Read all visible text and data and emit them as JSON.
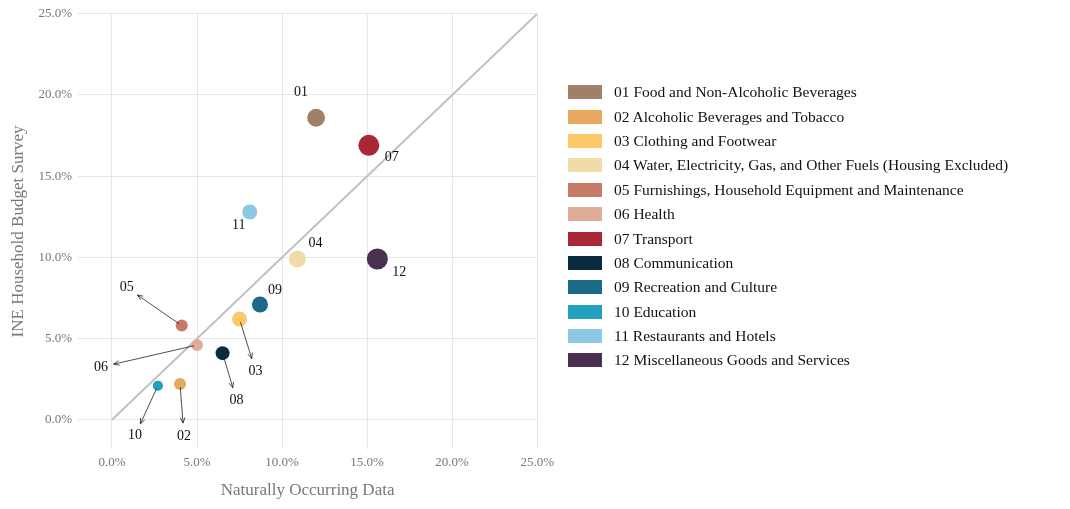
{
  "chart_data": {
    "type": "bubble",
    "xlabel": "Naturally Occurring Data",
    "ylabel": "INE Household Budget Survey",
    "xlim": [
      -2,
      25
    ],
    "ylim": [
      -1.8,
      25
    ],
    "xticks": [
      {
        "value": 0,
        "label": "0.0%"
      },
      {
        "value": 5,
        "label": "5.0%"
      },
      {
        "value": 10,
        "label": "10.0%"
      },
      {
        "value": 15,
        "label": "15.0%"
      },
      {
        "value": 20,
        "label": "20.0%"
      },
      {
        "value": 25,
        "label": "25.0%"
      }
    ],
    "yticks": [
      {
        "value": 0,
        "label": "0.0%"
      },
      {
        "value": 5,
        "label": "5.0%"
      },
      {
        "value": 10,
        "label": "10.0%"
      },
      {
        "value": 15,
        "label": "15.0%"
      },
      {
        "value": 20,
        "label": "20.0%"
      },
      {
        "value": 25,
        "label": "25.0%"
      }
    ],
    "grid": true,
    "legend": "right",
    "series": [
      {
        "type": "line",
        "color": "#c0c0c0",
        "x": [
          0,
          25
        ],
        "values": [
          0,
          25
        ]
      },
      {
        "name": "01 Food and Non-Alcoholic Beverages",
        "color": "#a08068",
        "x": [
          12.0
        ],
        "values": [
          18.6
        ],
        "sizes": [
          0.73
        ]
      },
      {
        "name": "02 Alcoholic Beverages and Tobacco",
        "color": "#e8a860",
        "x": [
          4.0
        ],
        "values": [
          2.2
        ],
        "sizes": [
          0.33
        ]
      },
      {
        "name": "03 Clothing and Footwear",
        "color": "#fcc86a",
        "x": [
          7.5
        ],
        "values": [
          6.2
        ],
        "sizes": [
          0.51
        ]
      },
      {
        "name": "04 Water, Electricity, Gas, and Other Fuels (Housing Excluded)",
        "color": "#f0dca8",
        "x": [
          10.9
        ],
        "values": [
          9.9
        ],
        "sizes": [
          0.66
        ]
      },
      {
        "name": "05 Furnishings, Household Equipment and Maintenance",
        "color": "#c87a68",
        "x": [
          4.1
        ],
        "values": [
          5.8
        ],
        "sizes": [
          0.33
        ]
      },
      {
        "name": "06 Health",
        "color": "#dcae98",
        "x": [
          5.0
        ],
        "values": [
          4.6
        ],
        "sizes": [
          0.33
        ]
      },
      {
        "name": "07 Transport",
        "color": "#a82838",
        "x": [
          15.1
        ],
        "values": [
          16.9
        ],
        "sizes": [
          1
        ]
      },
      {
        "name": "08 Communication",
        "color": "#0a2a40",
        "x": [
          6.5
        ],
        "values": [
          4.1
        ],
        "sizes": [
          0.44
        ]
      },
      {
        "name": "09 Recreation and Culture",
        "color": "#1a6a88",
        "x": [
          8.7
        ],
        "values": [
          7.1
        ],
        "sizes": [
          0.58
        ]
      },
      {
        "name": "10 Education",
        "color": "#22a0c0",
        "x": [
          2.7
        ],
        "values": [
          2.1
        ],
        "sizes": [
          0.23
        ]
      },
      {
        "name": "11 Restaurants and Hotels",
        "color": "#8cc8e4",
        "x": [
          8.1
        ],
        "values": [
          12.8
        ],
        "sizes": [
          0.51
        ]
      },
      {
        "name": "12 Miscellaneous Goods and Services",
        "color": "#4a3050",
        "x": [
          15.6
        ],
        "values": [
          9.9
        ],
        "sizes": [
          1
        ]
      }
    ],
    "annotations": [
      {
        "text": "01",
        "x": 12.0,
        "y": 18.6
      },
      {
        "text": "02",
        "x": 4.0,
        "y": 2.2
      },
      {
        "text": "03",
        "x": 7.5,
        "y": 6.2
      },
      {
        "text": "04",
        "x": 10.9,
        "y": 9.9
      },
      {
        "text": "05",
        "x": 4.1,
        "y": 5.8
      },
      {
        "text": "06",
        "x": 5.0,
        "y": 4.6
      },
      {
        "text": "07",
        "x": 15.1,
        "y": 16.9
      },
      {
        "text": "08",
        "x": 6.5,
        "y": 4.1
      },
      {
        "text": "09",
        "x": 8.7,
        "y": 7.1
      },
      {
        "text": "10",
        "x": 2.7,
        "y": 2.1
      },
      {
        "text": "11",
        "x": 8.1,
        "y": 12.8
      },
      {
        "text": "12",
        "x": 15.6,
        "y": 9.9
      }
    ]
  }
}
